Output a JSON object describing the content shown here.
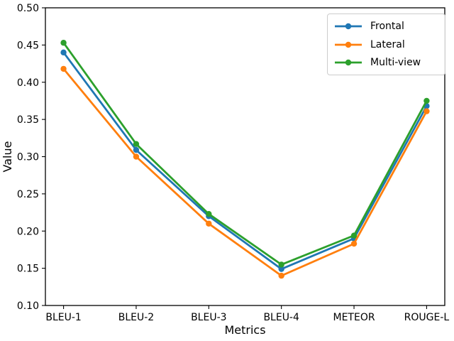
{
  "chart_data": {
    "type": "line",
    "title": "",
    "xlabel": "Metrics",
    "ylabel": "Value",
    "categories": [
      "BLEU-1",
      "BLEU-2",
      "BLEU-3",
      "BLEU-4",
      "METEOR",
      "ROUGE-L"
    ],
    "series": [
      {
        "name": "Frontal",
        "color": "#1f77b4",
        "marker": "circle",
        "values": [
          0.44,
          0.309,
          0.22,
          0.149,
          0.19,
          0.368
        ]
      },
      {
        "name": "Lateral",
        "color": "#ff7f0e",
        "marker": "circle",
        "values": [
          0.418,
          0.3,
          0.21,
          0.14,
          0.183,
          0.361
        ]
      },
      {
        "name": "Multi-view",
        "color": "#2ca02c",
        "marker": "circle",
        "values": [
          0.453,
          0.317,
          0.223,
          0.155,
          0.194,
          0.375
        ]
      }
    ],
    "ylim": [
      0.1,
      0.5
    ],
    "yticks": [
      0.1,
      0.15,
      0.2,
      0.25,
      0.3,
      0.35,
      0.4,
      0.45,
      0.5
    ],
    "ytick_labels": [
      "0.10",
      "0.15",
      "0.20",
      "0.25",
      "0.30",
      "0.35",
      "0.40",
      "0.45",
      "0.50"
    ],
    "grid": false,
    "legend_position": "upper right",
    "axis_color": "#000000",
    "background_color": "#ffffff"
  }
}
